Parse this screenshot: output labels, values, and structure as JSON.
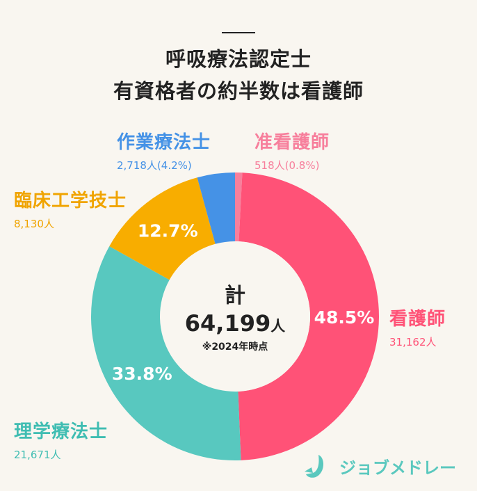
{
  "title_lines": [
    "呼吸療法認定士",
    "有資格者の約半数は看護師"
  ],
  "chart_data": {
    "type": "pie",
    "donut": true,
    "start": "top",
    "direction": "clockwise",
    "series": [
      {
        "name": "准看護師",
        "count_label": "518人(0.8%)",
        "value": 518,
        "percent": 0.8,
        "color": "#f77f9c",
        "pct_label": ""
      },
      {
        "name": "看護師",
        "count_label": "31,162人",
        "value": 31162,
        "percent": 48.5,
        "color": "#ff5277",
        "pct_label": "48.5%"
      },
      {
        "name": "理学療法士",
        "count_label": "21,671人",
        "value": 21671,
        "percent": 33.8,
        "color": "#58c8bf",
        "pct_label": "33.8%"
      },
      {
        "name": "臨床工学技士",
        "count_label": "8,130人",
        "value": 8130,
        "percent": 12.7,
        "color": "#f8ad00",
        "pct_label": "12.7%"
      },
      {
        "name": "作業療法士",
        "count_label": "2,718人(4.2%)",
        "value": 2718,
        "percent": 4.2,
        "color": "#4592e6",
        "pct_label": ""
      }
    ]
  },
  "center": {
    "label": "計",
    "total": "64,199",
    "unit": "人",
    "note": "※2024年時点"
  },
  "logo": {
    "text": "ジョブメドレー",
    "color": "#5ac8be"
  },
  "background": "#f9f6f0"
}
